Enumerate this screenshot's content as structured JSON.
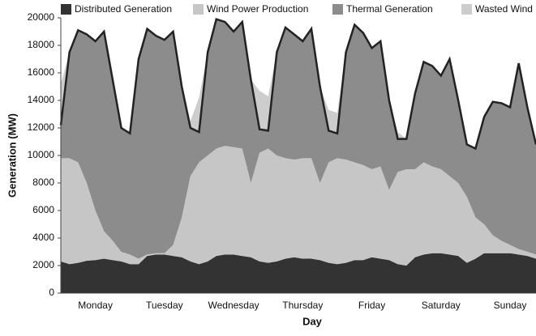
{
  "chart_data": {
    "type": "stacked-area",
    "x_label": "Day",
    "y_label": "Generation (MW)",
    "categories": [
      null,
      null,
      null,
      null,
      "Monday",
      null,
      null,
      null,
      null,
      null,
      null,
      null,
      "Tuesday",
      null,
      null,
      null,
      null,
      null,
      null,
      null,
      "Wednesday",
      null,
      null,
      null,
      null,
      null,
      null,
      null,
      "Thursday",
      null,
      null,
      null,
      null,
      null,
      null,
      null,
      "Friday",
      null,
      null,
      null,
      null,
      null,
      null,
      null,
      "Saturday",
      null,
      null,
      null,
      null,
      null,
      null,
      null,
      "Sunday",
      null,
      null,
      null
    ],
    "series": [
      {
        "name": "Distributed Generation",
        "color": "#333333",
        "values": [
          2300,
          2100,
          2200,
          2350,
          2400,
          2500,
          2400,
          2300,
          2100,
          2100,
          2700,
          2800,
          2800,
          2700,
          2600,
          2300,
          2100,
          2300,
          2700,
          2800,
          2800,
          2700,
          2600,
          2300,
          2200,
          2300,
          2500,
          2600,
          2500,
          2500,
          2400,
          2200,
          2100,
          2200,
          2400,
          2400,
          2600,
          2500,
          2400,
          2100,
          2000,
          2600,
          2800,
          2900,
          2900,
          2800,
          2700,
          2200,
          2500,
          2900,
          2900,
          2900,
          2900,
          2800,
          2700,
          2500
        ]
      },
      {
        "name": "Wind Power Production",
        "color": "#c6c6c6",
        "values": [
          7500,
          7700,
          7300,
          5650,
          3600,
          2000,
          1400,
          700,
          700,
          400,
          100,
          100,
          100,
          800,
          2900,
          6200,
          7400,
          7700,
          7800,
          7900,
          7800,
          7800,
          5400,
          7900,
          8300,
          7700,
          7300,
          7100,
          7300,
          7300,
          5600,
          7300,
          7700,
          7500,
          7100,
          6900,
          6400,
          6700,
          5100,
          6700,
          7000,
          6400,
          6700,
          6300,
          6100,
          5700,
          5300,
          4800,
          3000,
          2100,
          1300,
          900,
          600,
          400,
          300,
          300
        ]
      },
      {
        "name": "Thermal Generation",
        "color": "#8c8c8c",
        "values": [
          2400,
          7700,
          9600,
          10800,
          12300,
          14500,
          11700,
          9000,
          8800,
          14500,
          16400,
          15800,
          15500,
          15500,
          9500,
          3500,
          2200,
          7500,
          9400,
          9000,
          8400,
          9200,
          7500,
          1700,
          1300,
          7500,
          9500,
          9100,
          8500,
          9400,
          7000,
          2300,
          1800,
          7800,
          10000,
          9600,
          8800,
          9100,
          6500,
          2400,
          2200,
          5500,
          7300,
          7300,
          6800,
          8500,
          6000,
          3800,
          5000,
          7800,
          9700,
          10000,
          10000,
          13500,
          10500,
          8000
        ]
      },
      {
        "name": "Wasted Wind",
        "color": "#cdcdcd",
        "values": [
          3000,
          0,
          0,
          0,
          0,
          0,
          0,
          0,
          0,
          0,
          0,
          0,
          0,
          0,
          0,
          500,
          2500,
          0,
          0,
          0,
          0,
          0,
          0,
          2800,
          2500,
          0,
          0,
          0,
          0,
          0,
          0,
          1500,
          1500,
          0,
          0,
          0,
          0,
          0,
          0,
          500,
          0,
          0,
          0,
          0,
          0,
          0,
          0,
          0,
          0,
          0,
          0,
          0,
          0,
          0,
          0,
          0
        ]
      }
    ],
    "ylim": [
      0,
      20000
    ],
    "yticks": [
      0,
      2000,
      4000,
      6000,
      8000,
      10000,
      12000,
      14000,
      16000,
      18000,
      20000
    ],
    "demand_outline_series": 2
  }
}
